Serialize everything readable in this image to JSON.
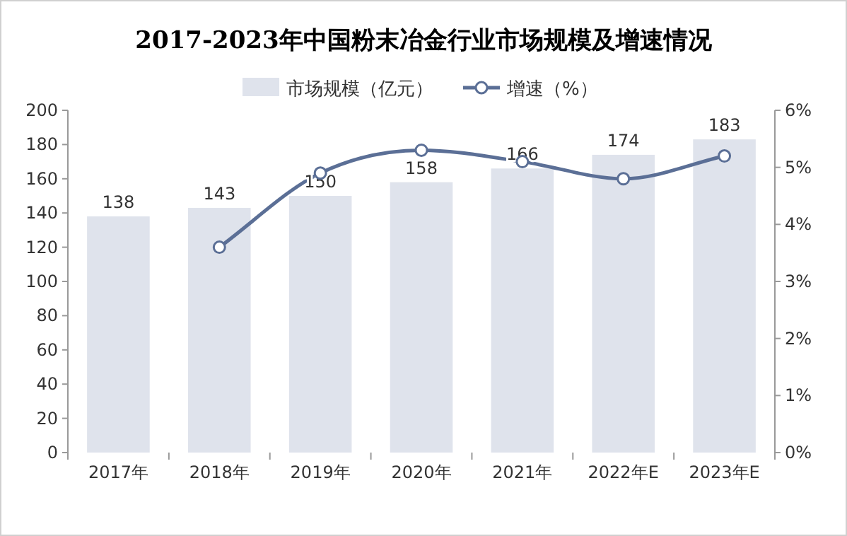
{
  "chart_data": {
    "type": "bar",
    "title": "2017-2023年中国粉末冶金行业市场规模及增速情况",
    "categories": [
      "2017年",
      "2018年",
      "2019年",
      "2020年",
      "2021年",
      "2022年E",
      "2023年E"
    ],
    "series": [
      {
        "name": "市场规模（亿元）",
        "color": "#dfe3ec",
        "values": [
          138,
          143,
          150,
          158,
          166,
          174,
          183
        ],
        "value_labels": [
          "138",
          "143",
          "150",
          "158",
          "166",
          "174",
          "183"
        ]
      },
      {
        "name": "增速（%）",
        "type": "line",
        "axis": "y2",
        "color": "#5b6f96",
        "marker": "circle",
        "values": [
          null,
          3.6,
          4.9,
          5.3,
          5.1,
          4.8,
          5.2
        ]
      }
    ],
    "legend": "top",
    "grid": false,
    "ylim": [
      0,
      200
    ],
    "yticks": [
      0,
      20,
      40,
      60,
      80,
      100,
      120,
      140,
      160,
      180,
      200
    ],
    "y2lim": [
      0,
      6
    ],
    "y2ticks": [
      {
        "value": 0,
        "label": "0%"
      },
      {
        "value": 1,
        "label": "1%"
      },
      {
        "value": 2,
        "label": "2%"
      },
      {
        "value": 3,
        "label": "3%"
      },
      {
        "value": 4,
        "label": "4%"
      },
      {
        "value": 5,
        "label": "5%"
      },
      {
        "value": 6,
        "label": "6%"
      }
    ]
  }
}
